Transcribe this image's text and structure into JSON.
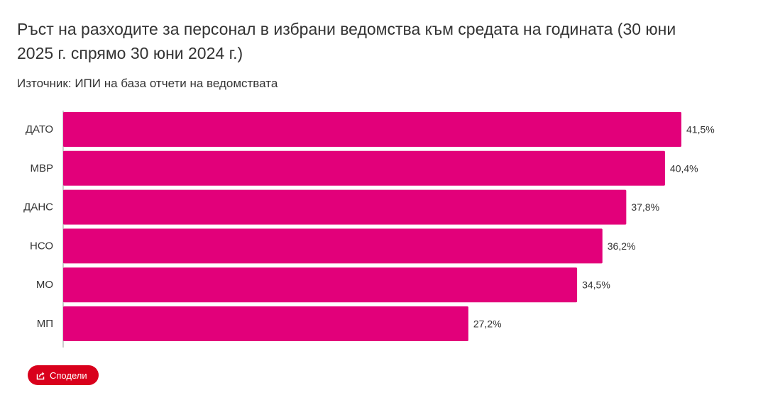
{
  "chart_data": {
    "type": "bar",
    "orientation": "horizontal",
    "title": "Ръст на разходите за персонал в избрани ведомства към средата на годината (30 юни 2025 г. спрямо 30 юни 2024 г.)",
    "subtitle": "Източник: ИПИ на база отчети на ведомствата",
    "categories": [
      "ДАТО",
      "МВР",
      "ДАНС",
      "НСО",
      "МО",
      "МП"
    ],
    "values": [
      41.5,
      40.4,
      37.8,
      36.2,
      34.5,
      27.2
    ],
    "value_labels": [
      "41,5%",
      "40,4%",
      "37,8%",
      "36,2%",
      "34,5%",
      "27,2%"
    ],
    "xlim": [
      0,
      41.5
    ],
    "bar_color": "#e2007a",
    "grid": false,
    "legend": "none"
  },
  "share": {
    "label": "Сподели",
    "icon": "share-icon",
    "color": "#d9001c"
  }
}
